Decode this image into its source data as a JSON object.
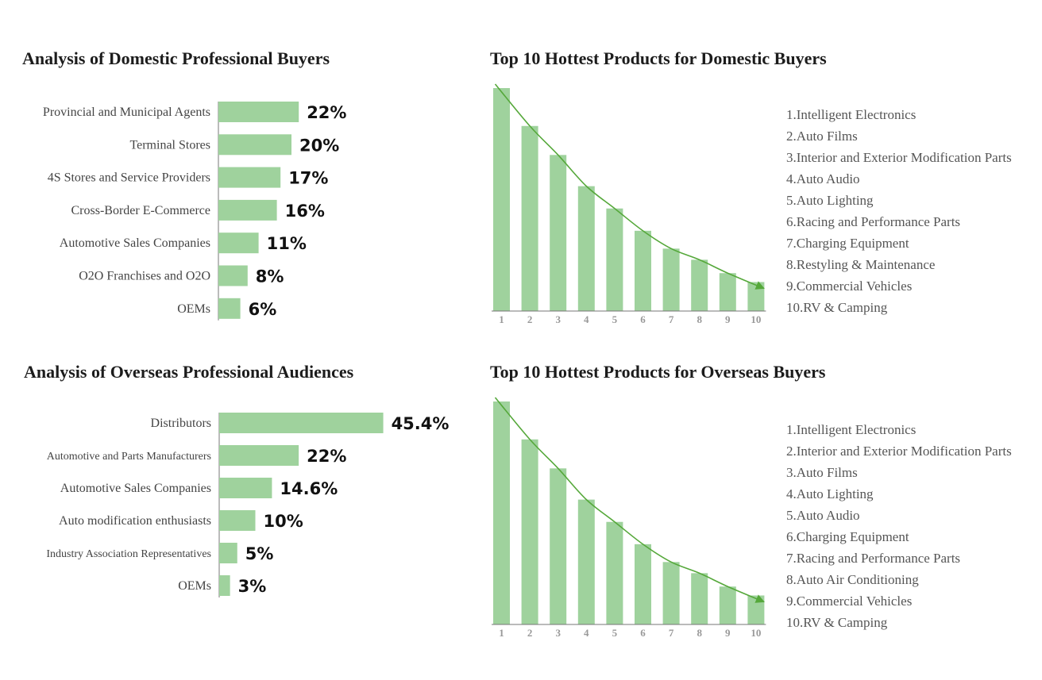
{
  "colors": {
    "bar": "#9fd29d",
    "axis": "#777777",
    "trend": "#55a83a",
    "label": "#444444",
    "value": "#111111"
  },
  "chart_data": [
    {
      "type": "bar",
      "orientation": "horizontal",
      "title": "Analysis of  Domestic Professional Buyers",
      "categories": [
        "Provincial and Municipal Agents",
        "Terminal Stores",
        "4S Stores and Service Providers",
        "Cross-Border E-Commerce",
        "Automotive Sales Companies",
        "O2O Franchises and O2O",
        "OEMs"
      ],
      "values": [
        22,
        20,
        17,
        16,
        11,
        8,
        6
      ],
      "value_labels": [
        "22%",
        "20%",
        "17%",
        "16%",
        "11%",
        "8%",
        "6%"
      ],
      "unit": "%",
      "grid": false
    },
    {
      "type": "bar",
      "title": "Top 10 Hottest Products for Domestic Buyers",
      "categories": [
        "1",
        "2",
        "3",
        "4",
        "5",
        "6",
        "7",
        "8",
        "9",
        "10"
      ],
      "values": [
        100,
        83,
        70,
        56,
        46,
        36,
        28,
        23,
        17,
        13
      ],
      "value_scale": "relative (no axis printed)",
      "trend_arrow": "decreasing",
      "legend_position": "right",
      "legend": [
        "1.Intelligent Electronics",
        "2.Auto Films",
        "3.Interior and Exterior Modification Parts",
        "4.Auto Audio",
        "5.Auto Lighting",
        "6.Racing and Performance Parts",
        "7.Charging Equipment",
        "8.Restyling & Maintenance",
        "9.Commercial Vehicles",
        "10.RV & Camping"
      ],
      "grid": false
    },
    {
      "type": "bar",
      "orientation": "horizontal",
      "title": "Analysis of Overseas Professional Audiences",
      "categories": [
        "Distributors",
        "Automotive and Parts Manufacturers",
        "Automotive Sales Companies",
        "Auto modification enthusiasts",
        "Industry Association Representatives",
        "OEMs"
      ],
      "values": [
        45.4,
        22,
        14.6,
        10,
        5,
        3
      ],
      "value_labels": [
        "45.4%",
        "22%",
        "14.6%",
        "10%",
        "5%",
        "3%"
      ],
      "unit": "%",
      "grid": false
    },
    {
      "type": "bar",
      "title": "Top 10 Hottest Products for Overseas Buyers",
      "categories": [
        "1",
        "2",
        "3",
        "4",
        "5",
        "6",
        "7",
        "8",
        "9",
        "10"
      ],
      "values": [
        100,
        83,
        70,
        56,
        46,
        36,
        28,
        23,
        17,
        13
      ],
      "value_scale": "relative (no axis printed)",
      "trend_arrow": "decreasing",
      "legend_position": "right",
      "legend": [
        "1.Intelligent Electronics",
        "2.Interior and Exterior Modification Parts",
        "3.Auto Films",
        "4.Auto Lighting",
        "5.Auto Audio",
        "6.Charging Equipment",
        "7.Racing and Performance Parts",
        "8.Auto Air Conditioning",
        "9.Commercial Vehicles",
        "10.RV & Camping"
      ],
      "grid": false
    }
  ]
}
